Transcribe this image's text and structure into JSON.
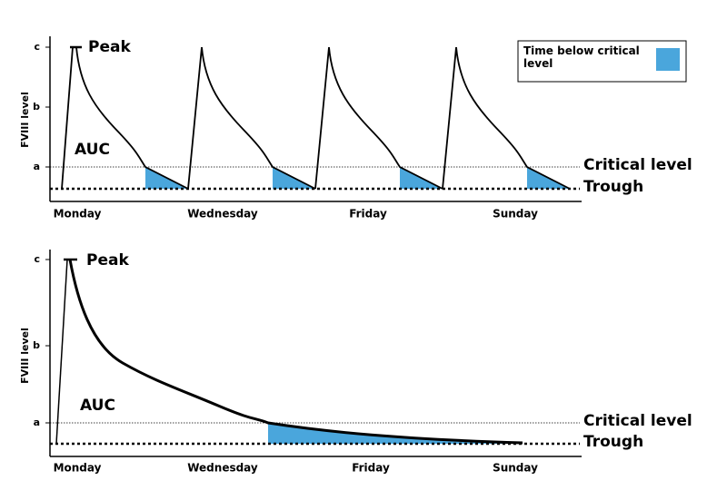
{
  "legend": {
    "label": "Time below critical level"
  },
  "panels": [
    {
      "y_axis_label": "FVIII level",
      "y_ticks": [
        "c",
        "b",
        "a"
      ],
      "x_labels": [
        "Monday",
        "Wednesday",
        "Friday",
        "Sunday"
      ],
      "peak": "Peak",
      "auc": "AUC",
      "critical": "Critical level",
      "trough": "Trough"
    },
    {
      "y_axis_label": "FVIII level",
      "y_ticks": [
        "c",
        "b",
        "a"
      ],
      "x_labels": [
        "Monday",
        "Wednesday",
        "Friday",
        "Sunday"
      ],
      "peak": "Peak",
      "auc": "AUC",
      "critical": "Critical level",
      "trough": "Trough"
    }
  ]
}
